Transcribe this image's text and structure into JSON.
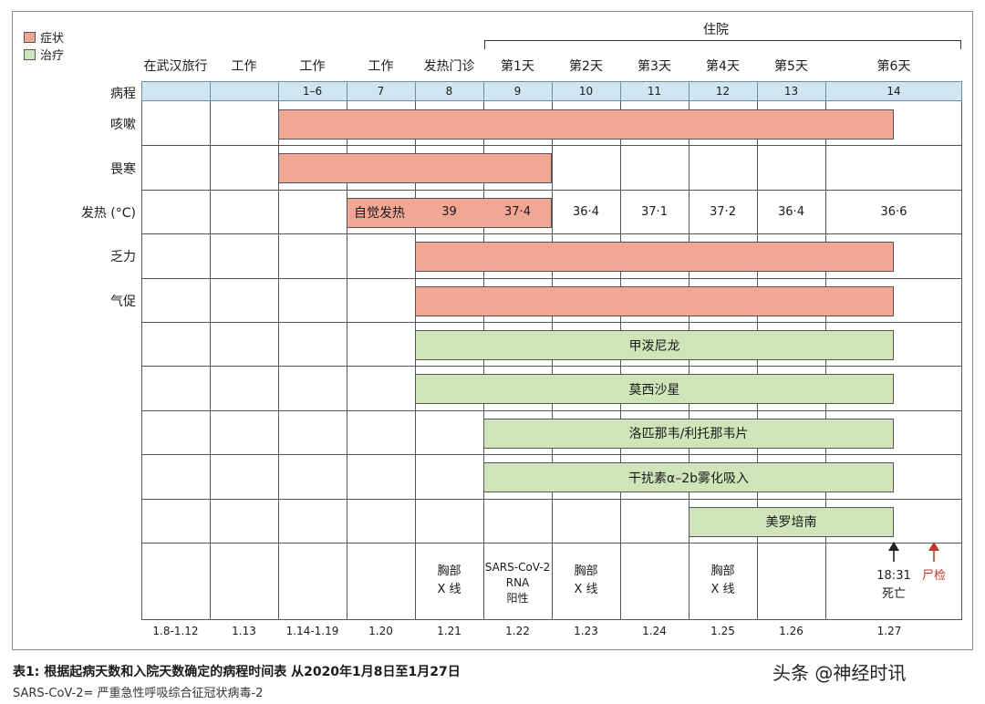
{
  "legend": [
    {
      "label": "症状",
      "color": "#f2a795"
    },
    {
      "label": "治疗",
      "color": "#cfe5b9"
    }
  ],
  "hospital_label": "住院",
  "column_headers": [
    "在武汉旅行",
    "工作",
    "工作",
    "工作",
    "发热门诊",
    "第1天",
    "第2天",
    "第3天",
    "第4天",
    "第5天",
    "第6天"
  ],
  "course_label": "病程",
  "course_values": [
    "",
    "",
    "1–6",
    "7",
    "8",
    "9",
    "10",
    "11",
    "12",
    "13",
    "14"
  ],
  "chart_data": {
    "type": "table",
    "dates": [
      "1.8-1.12",
      "1.13",
      "1.14-1.19",
      "1.20",
      "1.21",
      "1.22",
      "1.23",
      "1.24",
      "1.25",
      "1.26",
      "1.27"
    ],
    "rows": [
      {
        "label": "咳嗽",
        "kind": "symptom",
        "start_col": 2,
        "end_col": 10.5
      },
      {
        "label": "畏寒",
        "kind": "symptom",
        "start_col": 2,
        "end_col": 5
      },
      {
        "label": "发热 (°C)",
        "kind": "symptom",
        "start_col": 3,
        "end_col": 5,
        "bar_text": "自觉发热",
        "temps": [
          {
            "col": 4,
            "value": "39"
          },
          {
            "col": 5,
            "value": "37·4"
          },
          {
            "col": 6,
            "value": "36·4"
          },
          {
            "col": 7,
            "value": "37·1"
          },
          {
            "col": 8,
            "value": "37·2"
          },
          {
            "col": 9,
            "value": "36·4"
          },
          {
            "col": 10,
            "value": "36·6"
          }
        ]
      },
      {
        "label": "乏力",
        "kind": "symptom",
        "start_col": 4,
        "end_col": 10.5
      },
      {
        "label": "气促",
        "kind": "symptom",
        "start_col": 4,
        "end_col": 10.5
      },
      {
        "label": "",
        "kind": "treatment",
        "start_col": 4,
        "end_col": 10.5,
        "bar_text": "甲泼尼龙"
      },
      {
        "label": "",
        "kind": "treatment",
        "start_col": 4,
        "end_col": 10.5,
        "bar_text": "莫西沙星"
      },
      {
        "label": "",
        "kind": "treatment",
        "start_col": 5,
        "end_col": 10.5,
        "bar_text": "洛匹那韦/利托那韦片"
      },
      {
        "label": "",
        "kind": "treatment",
        "start_col": 5,
        "end_col": 10.5,
        "bar_text": "干扰素α–2b雾化吸入"
      },
      {
        "label": "",
        "kind": "treatment",
        "start_col": 8,
        "end_col": 10.5,
        "bar_text": "美罗培南"
      }
    ],
    "events": [
      {
        "col": 4,
        "text": "胸部\nX 线"
      },
      {
        "col": 5,
        "text": "SARS-CoV-2\nRNA\n阳性"
      },
      {
        "col": 6,
        "text": "胸部\nX 线"
      },
      {
        "col": 8,
        "text": "胸部\nX 线"
      },
      {
        "col": 10,
        "text": "18:31\n死亡",
        "arrow_color": "#222222"
      },
      {
        "col": 11,
        "text": "尸检",
        "arrow_color": "#c0392b"
      }
    ]
  },
  "caption": "表1: 根据起病天数和入院天数确定的病程时间表  从2020年1月8日至1月27日",
  "footnote": "SARS-CoV-2= 严重急性呼吸综合征冠状病毒-2",
  "watermark": "头条 @神经时讯"
}
